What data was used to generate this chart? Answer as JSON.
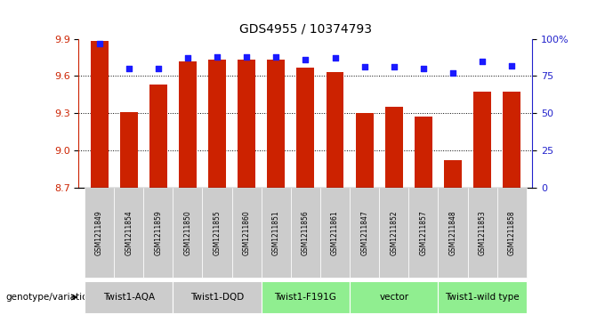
{
  "title": "GDS4955 / 10374793",
  "samples": [
    "GSM1211849",
    "GSM1211854",
    "GSM1211859",
    "GSM1211850",
    "GSM1211855",
    "GSM1211860",
    "GSM1211851",
    "GSM1211856",
    "GSM1211861",
    "GSM1211847",
    "GSM1211852",
    "GSM1211857",
    "GSM1211848",
    "GSM1211853",
    "GSM1211858"
  ],
  "transformed_counts": [
    9.88,
    9.31,
    9.53,
    9.72,
    9.73,
    9.73,
    9.73,
    9.67,
    9.63,
    9.3,
    9.35,
    9.27,
    8.92,
    9.47,
    9.47
  ],
  "percentile_ranks": [
    97,
    80,
    80,
    87,
    88,
    88,
    88,
    86,
    87,
    81,
    81,
    80,
    77,
    85,
    82
  ],
  "groups": [
    {
      "label": "Twist1-AQA",
      "count": 3,
      "color": "#cccccc"
    },
    {
      "label": "Twist1-DQD",
      "count": 3,
      "color": "#cccccc"
    },
    {
      "label": "Twist1-F191G",
      "count": 3,
      "color": "#90ee90"
    },
    {
      "label": "vector",
      "count": 3,
      "color": "#90ee90"
    },
    {
      "label": "Twist1-wild type",
      "count": 3,
      "color": "#90ee90"
    }
  ],
  "ylim_left": [
    8.7,
    9.9
  ],
  "ylim_right": [
    0,
    100
  ],
  "yticks_left": [
    8.7,
    9.0,
    9.3,
    9.6,
    9.9
  ],
  "yticks_right": [
    0,
    25,
    50,
    75,
    100
  ],
  "bar_color": "#cc2200",
  "dot_color": "#1a1aff",
  "grid_color": "#000000",
  "label_color_red": "#cc2200",
  "label_color_blue": "#2222cc",
  "sample_box_color": "#cccccc",
  "bg_color": "#ffffff",
  "genotype_label": "genotype/variation"
}
